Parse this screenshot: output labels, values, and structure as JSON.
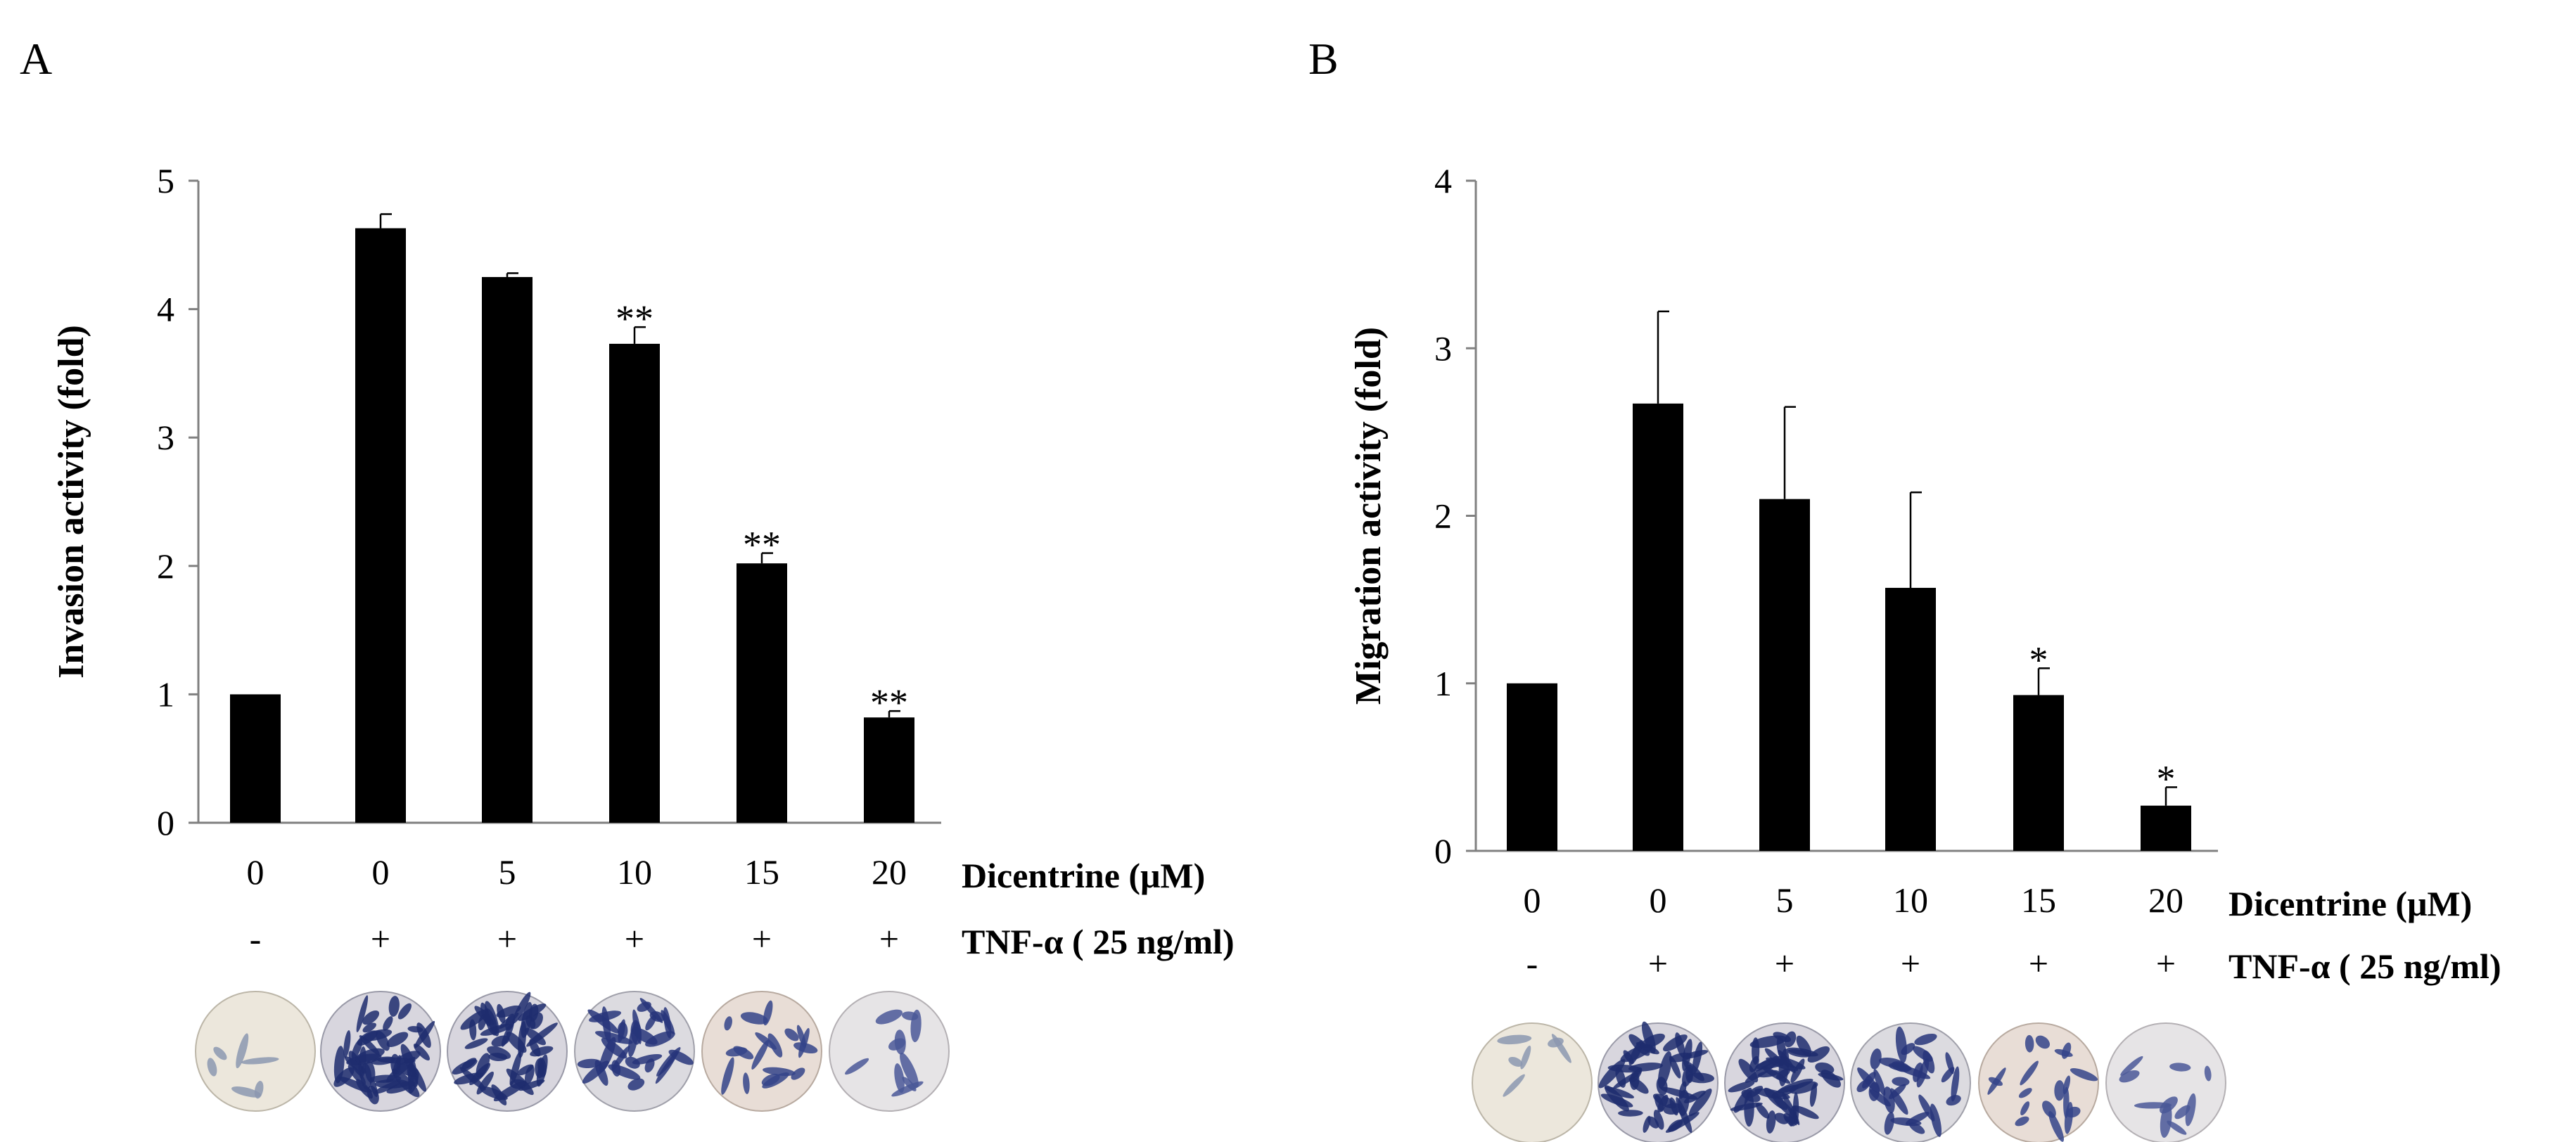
{
  "colors": {
    "bar": "#000000",
    "axis": "#808080",
    "text": "#000000"
  },
  "chart_data": [
    {
      "panel_label": "A",
      "type": "bar",
      "ylabel": "Invasion activity (fold)",
      "ylim": [
        0,
        5
      ],
      "yticks": [
        "0",
        "1",
        "2",
        "3",
        "4",
        "5"
      ],
      "categories": [
        "0",
        "0",
        "5",
        "10",
        "15",
        "20"
      ],
      "values": [
        1.0,
        4.63,
        4.25,
        3.73,
        2.02,
        0.82
      ],
      "errors": [
        0.0,
        0.11,
        0.03,
        0.13,
        0.08,
        0.05
      ],
      "significance": [
        "",
        "",
        "",
        "**",
        "**",
        "**"
      ],
      "treatment_row_label": "Dicentrine (μM)",
      "tnf_row_label": "TNF-α ( 25 ng/ml)",
      "tnf_marks": [
        "-",
        "+",
        "+",
        "+",
        "+",
        "+"
      ],
      "micrograph_icons": [
        "well-control-sparse-icon",
        "well-dense-invasion-icon",
        "well-dense-invasion-icon",
        "well-medium-invasion-icon",
        "well-light-invasion-icon",
        "well-sparse-invasion-icon"
      ]
    },
    {
      "panel_label": "B",
      "type": "bar",
      "ylabel": "Migration activity (fold)",
      "ylim": [
        0,
        4
      ],
      "yticks": [
        "0",
        "1",
        "2",
        "3",
        "4"
      ],
      "categories": [
        "0",
        "0",
        "5",
        "10",
        "15",
        "20"
      ],
      "values": [
        1.0,
        2.67,
        2.1,
        1.57,
        0.93,
        0.27
      ],
      "errors": [
        0.0,
        0.55,
        0.55,
        0.57,
        0.16,
        0.11
      ],
      "significance": [
        "",
        "",
        "",
        "",
        "*",
        "*"
      ],
      "treatment_row_label": "Dicentrine (μM)",
      "tnf_row_label": "TNF-α ( 25 ng/ml)",
      "tnf_marks": [
        "-",
        "+",
        "+",
        "+",
        "+",
        "+"
      ],
      "micrograph_icons": [
        "well-control-sparse-icon",
        "well-dense-migration-icon",
        "well-dense-migration-icon",
        "well-medium-migration-icon",
        "well-light-migration-icon",
        "well-sparse-migration-icon"
      ]
    }
  ]
}
